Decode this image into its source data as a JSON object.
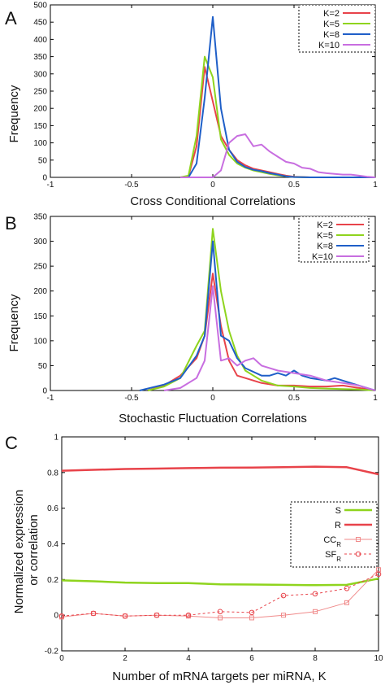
{
  "panels": [
    {
      "letter": "A",
      "xlabel": "Cross Conditional Correlations",
      "ylabel": "Frequency",
      "xlim": [
        -1,
        1
      ],
      "ylim": [
        0,
        500
      ],
      "xticks": [
        {
          "v": -1,
          "t": "-1"
        },
        {
          "v": -0.5,
          "t": "-0.5"
        },
        {
          "v": 0,
          "t": "0"
        },
        {
          "v": 0.5,
          "t": "0.5"
        },
        {
          "v": 1,
          "t": "1"
        }
      ],
      "yticks": [
        {
          "v": 0,
          "t": "0"
        },
        {
          "v": 50,
          "t": "50"
        },
        {
          "v": 100,
          "t": "100"
        },
        {
          "v": 150,
          "t": "150"
        },
        {
          "v": 200,
          "t": "200"
        },
        {
          "v": 250,
          "t": "250"
        },
        {
          "v": 300,
          "t": "300"
        },
        {
          "v": 350,
          "t": "350"
        },
        {
          "v": 400,
          "t": "400"
        },
        {
          "v": 450,
          "t": "450"
        },
        {
          "v": 500,
          "t": "500"
        }
      ]
    },
    {
      "letter": "B",
      "xlabel": "Stochastic Fluctuation Correlations",
      "ylabel": "Frequency",
      "xlim": [
        -1,
        1
      ],
      "ylim": [
        0,
        350
      ],
      "xticks": [
        {
          "v": -1,
          "t": "-1"
        },
        {
          "v": -0.5,
          "t": "-0.5"
        },
        {
          "v": 0,
          "t": "0"
        },
        {
          "v": 0.5,
          "t": "0.5"
        },
        {
          "v": 1,
          "t": "1"
        }
      ],
      "yticks": [
        {
          "v": 0,
          "t": "0"
        },
        {
          "v": 50,
          "t": "50"
        },
        {
          "v": 100,
          "t": "100"
        },
        {
          "v": 150,
          "t": "150"
        },
        {
          "v": 200,
          "t": "200"
        },
        {
          "v": 250,
          "t": "250"
        },
        {
          "v": 300,
          "t": "300"
        },
        {
          "v": 350,
          "t": "350"
        }
      ]
    },
    {
      "letter": "C",
      "xlabel": "Number of mRNA targets per miRNA, K",
      "ylabel_lines": [
        "Normalized expression",
        "or correlation"
      ],
      "xlim": [
        0,
        10
      ],
      "ylim": [
        -0.2,
        1
      ],
      "xticks": [
        {
          "v": 0,
          "t": "0"
        },
        {
          "v": 2,
          "t": "2"
        },
        {
          "v": 4,
          "t": "4"
        },
        {
          "v": 6,
          "t": "6"
        },
        {
          "v": 8,
          "t": "8"
        },
        {
          "v": 10,
          "t": "10"
        }
      ],
      "yticks": [
        {
          "v": -0.2,
          "t": "-0.2"
        },
        {
          "v": 0,
          "t": "0"
        },
        {
          "v": 0.2,
          "t": "0.2"
        },
        {
          "v": 0.4,
          "t": "0.4"
        },
        {
          "v": 0.6,
          "t": "0.6"
        },
        {
          "v": 0.8,
          "t": "0.8"
        },
        {
          "v": 1,
          "t": "1"
        }
      ]
    }
  ],
  "chart_data": [
    {
      "type": "line",
      "title": "",
      "xlabel": "Cross Conditional Correlations",
      "ylabel": "Frequency",
      "xlim": [
        -1,
        1
      ],
      "ylim": [
        0,
        500
      ],
      "legend_placement": "top-right",
      "grid": false,
      "series": [
        {
          "name": "K=2",
          "color": "#e8434a",
          "x": [
            -0.2,
            -0.15,
            -0.1,
            -0.05,
            0,
            0.05,
            0.1,
            0.15,
            0.2,
            0.25,
            0.3,
            0.35,
            0.4,
            0.45,
            0.5,
            0.6,
            0.7,
            0.8,
            0.9,
            1.0
          ],
          "y": [
            0,
            3,
            90,
            320,
            220,
            120,
            80,
            50,
            35,
            25,
            20,
            15,
            10,
            5,
            2,
            0,
            0,
            0,
            0,
            0
          ]
        },
        {
          "name": "K=5",
          "color": "#8fd41e",
          "x": [
            -0.2,
            -0.15,
            -0.1,
            -0.05,
            0,
            0.05,
            0.1,
            0.15,
            0.2,
            0.25,
            0.3,
            0.35,
            0.4,
            0.45,
            0.5,
            0.6,
            0.7,
            0.8,
            0.9,
            1.0
          ],
          "y": [
            0,
            5,
            120,
            350,
            290,
            110,
            65,
            40,
            28,
            20,
            15,
            10,
            6,
            3,
            1,
            0,
            0,
            0,
            0,
            0
          ]
        },
        {
          "name": "K=8",
          "color": "#1f5fc8",
          "x": [
            -0.2,
            -0.15,
            -0.1,
            -0.05,
            0,
            0.05,
            0.1,
            0.15,
            0.2,
            0.25,
            0.3,
            0.35,
            0.4,
            0.45,
            0.5,
            0.6,
            0.7,
            0.8,
            0.9,
            1.0
          ],
          "y": [
            0,
            0,
            40,
            230,
            465,
            200,
            80,
            45,
            30,
            22,
            18,
            12,
            8,
            3,
            1,
            0,
            0,
            0,
            0,
            0
          ]
        },
        {
          "name": "K=10",
          "color": "#c86ee0",
          "x": [
            -0.2,
            -0.1,
            0,
            0.05,
            0.1,
            0.15,
            0.2,
            0.25,
            0.3,
            0.35,
            0.4,
            0.45,
            0.5,
            0.55,
            0.6,
            0.65,
            0.7,
            0.75,
            0.8,
            0.85,
            0.9,
            0.95,
            1.0
          ],
          "y": [
            0,
            0,
            0,
            20,
            100,
            120,
            125,
            90,
            95,
            75,
            60,
            45,
            40,
            28,
            25,
            15,
            12,
            10,
            8,
            8,
            5,
            2,
            0
          ]
        }
      ]
    },
    {
      "type": "line",
      "title": "",
      "xlabel": "Stochastic Fluctuation Correlations",
      "ylabel": "Frequency",
      "xlim": [
        -1,
        1
      ],
      "ylim": [
        0,
        350
      ],
      "legend_placement": "top-right",
      "grid": false,
      "series": [
        {
          "name": "K=2",
          "color": "#e8434a",
          "x": [
            -0.4,
            -0.3,
            -0.2,
            -0.1,
            -0.05,
            0,
            0.05,
            0.1,
            0.15,
            0.2,
            0.3,
            0.4,
            0.5,
            0.6,
            0.7,
            0.8,
            0.9,
            1.0
          ],
          "y": [
            0,
            10,
            30,
            65,
            110,
            235,
            130,
            60,
            30,
            25,
            15,
            10,
            10,
            8,
            8,
            10,
            5,
            0
          ]
        },
        {
          "name": "K=5",
          "color": "#8fd41e",
          "x": [
            -0.4,
            -0.3,
            -0.2,
            -0.1,
            -0.05,
            0,
            0.05,
            0.1,
            0.15,
            0.2,
            0.3,
            0.4,
            0.5,
            0.6,
            0.7,
            0.8,
            0.9,
            1.0
          ],
          "y": [
            0,
            8,
            25,
            90,
            120,
            325,
            200,
            120,
            70,
            40,
            20,
            10,
            8,
            5,
            4,
            3,
            2,
            0
          ]
        },
        {
          "name": "K=8",
          "color": "#1f5fc8",
          "x": [
            -0.45,
            -0.3,
            -0.2,
            -0.1,
            -0.05,
            0,
            0.05,
            0.1,
            0.15,
            0.2,
            0.3,
            0.35,
            0.4,
            0.45,
            0.5,
            0.55,
            0.6,
            0.7,
            0.75,
            0.8,
            0.9,
            1.0
          ],
          "y": [
            0,
            12,
            25,
            70,
            110,
            300,
            110,
            100,
            65,
            45,
            30,
            30,
            35,
            30,
            40,
            30,
            25,
            20,
            25,
            20,
            10,
            0
          ]
        },
        {
          "name": "K=10",
          "color": "#c86ee0",
          "x": [
            -0.3,
            -0.2,
            -0.1,
            -0.05,
            0,
            0.05,
            0.1,
            0.15,
            0.2,
            0.25,
            0.3,
            0.4,
            0.5,
            0.6,
            0.7,
            0.8,
            0.9,
            1.0
          ],
          "y": [
            0,
            5,
            25,
            60,
            210,
            60,
            65,
            50,
            60,
            65,
            50,
            40,
            35,
            30,
            20,
            15,
            10,
            0
          ]
        }
      ]
    },
    {
      "type": "line",
      "title": "",
      "xlabel": "Number of mRNA targets per miRNA, K",
      "ylabel": "Normalized expression or correlation",
      "xlim": [
        0,
        10
      ],
      "ylim": [
        -0.2,
        1
      ],
      "legend_placement": "right",
      "grid": false,
      "series": [
        {
          "name": "S",
          "sub": "",
          "color": "#8fd41e",
          "width": 2.5,
          "dash": "",
          "marker": "none",
          "x": [
            0,
            1,
            2,
            3,
            4,
            5,
            6,
            7,
            8,
            9,
            10
          ],
          "y": [
            0.195,
            0.19,
            0.183,
            0.18,
            0.18,
            0.173,
            0.172,
            0.17,
            0.168,
            0.17,
            0.205
          ]
        },
        {
          "name": "R",
          "sub": "",
          "color": "#e8434a",
          "width": 2.5,
          "dash": "",
          "marker": "none",
          "x": [
            0,
            1,
            2,
            3,
            4,
            5,
            6,
            7,
            8,
            9,
            10
          ],
          "y": [
            0.81,
            0.815,
            0.82,
            0.822,
            0.825,
            0.827,
            0.828,
            0.83,
            0.833,
            0.83,
            0.79
          ]
        },
        {
          "name": "CC",
          "sub": "R",
          "color": "#f08a8a",
          "width": 1,
          "dash": "",
          "marker": "square",
          "x": [
            0,
            1,
            2,
            3,
            4,
            5,
            6,
            7,
            8,
            9,
            10
          ],
          "y": [
            -0.01,
            0.01,
            -0.005,
            0.0,
            -0.005,
            -0.015,
            -0.015,
            0.0,
            0.02,
            0.07,
            0.255
          ]
        },
        {
          "name": "SF",
          "sub": "R",
          "color": "#e8434a",
          "width": 1,
          "dash": "3,3",
          "marker": "circle",
          "x": [
            0,
            1,
            2,
            3,
            4,
            5,
            6,
            7,
            8,
            9,
            10
          ],
          "y": [
            -0.005,
            0.01,
            -0.005,
            0.0,
            0.0,
            0.02,
            0.015,
            0.11,
            0.12,
            0.15,
            0.23
          ]
        }
      ]
    }
  ]
}
